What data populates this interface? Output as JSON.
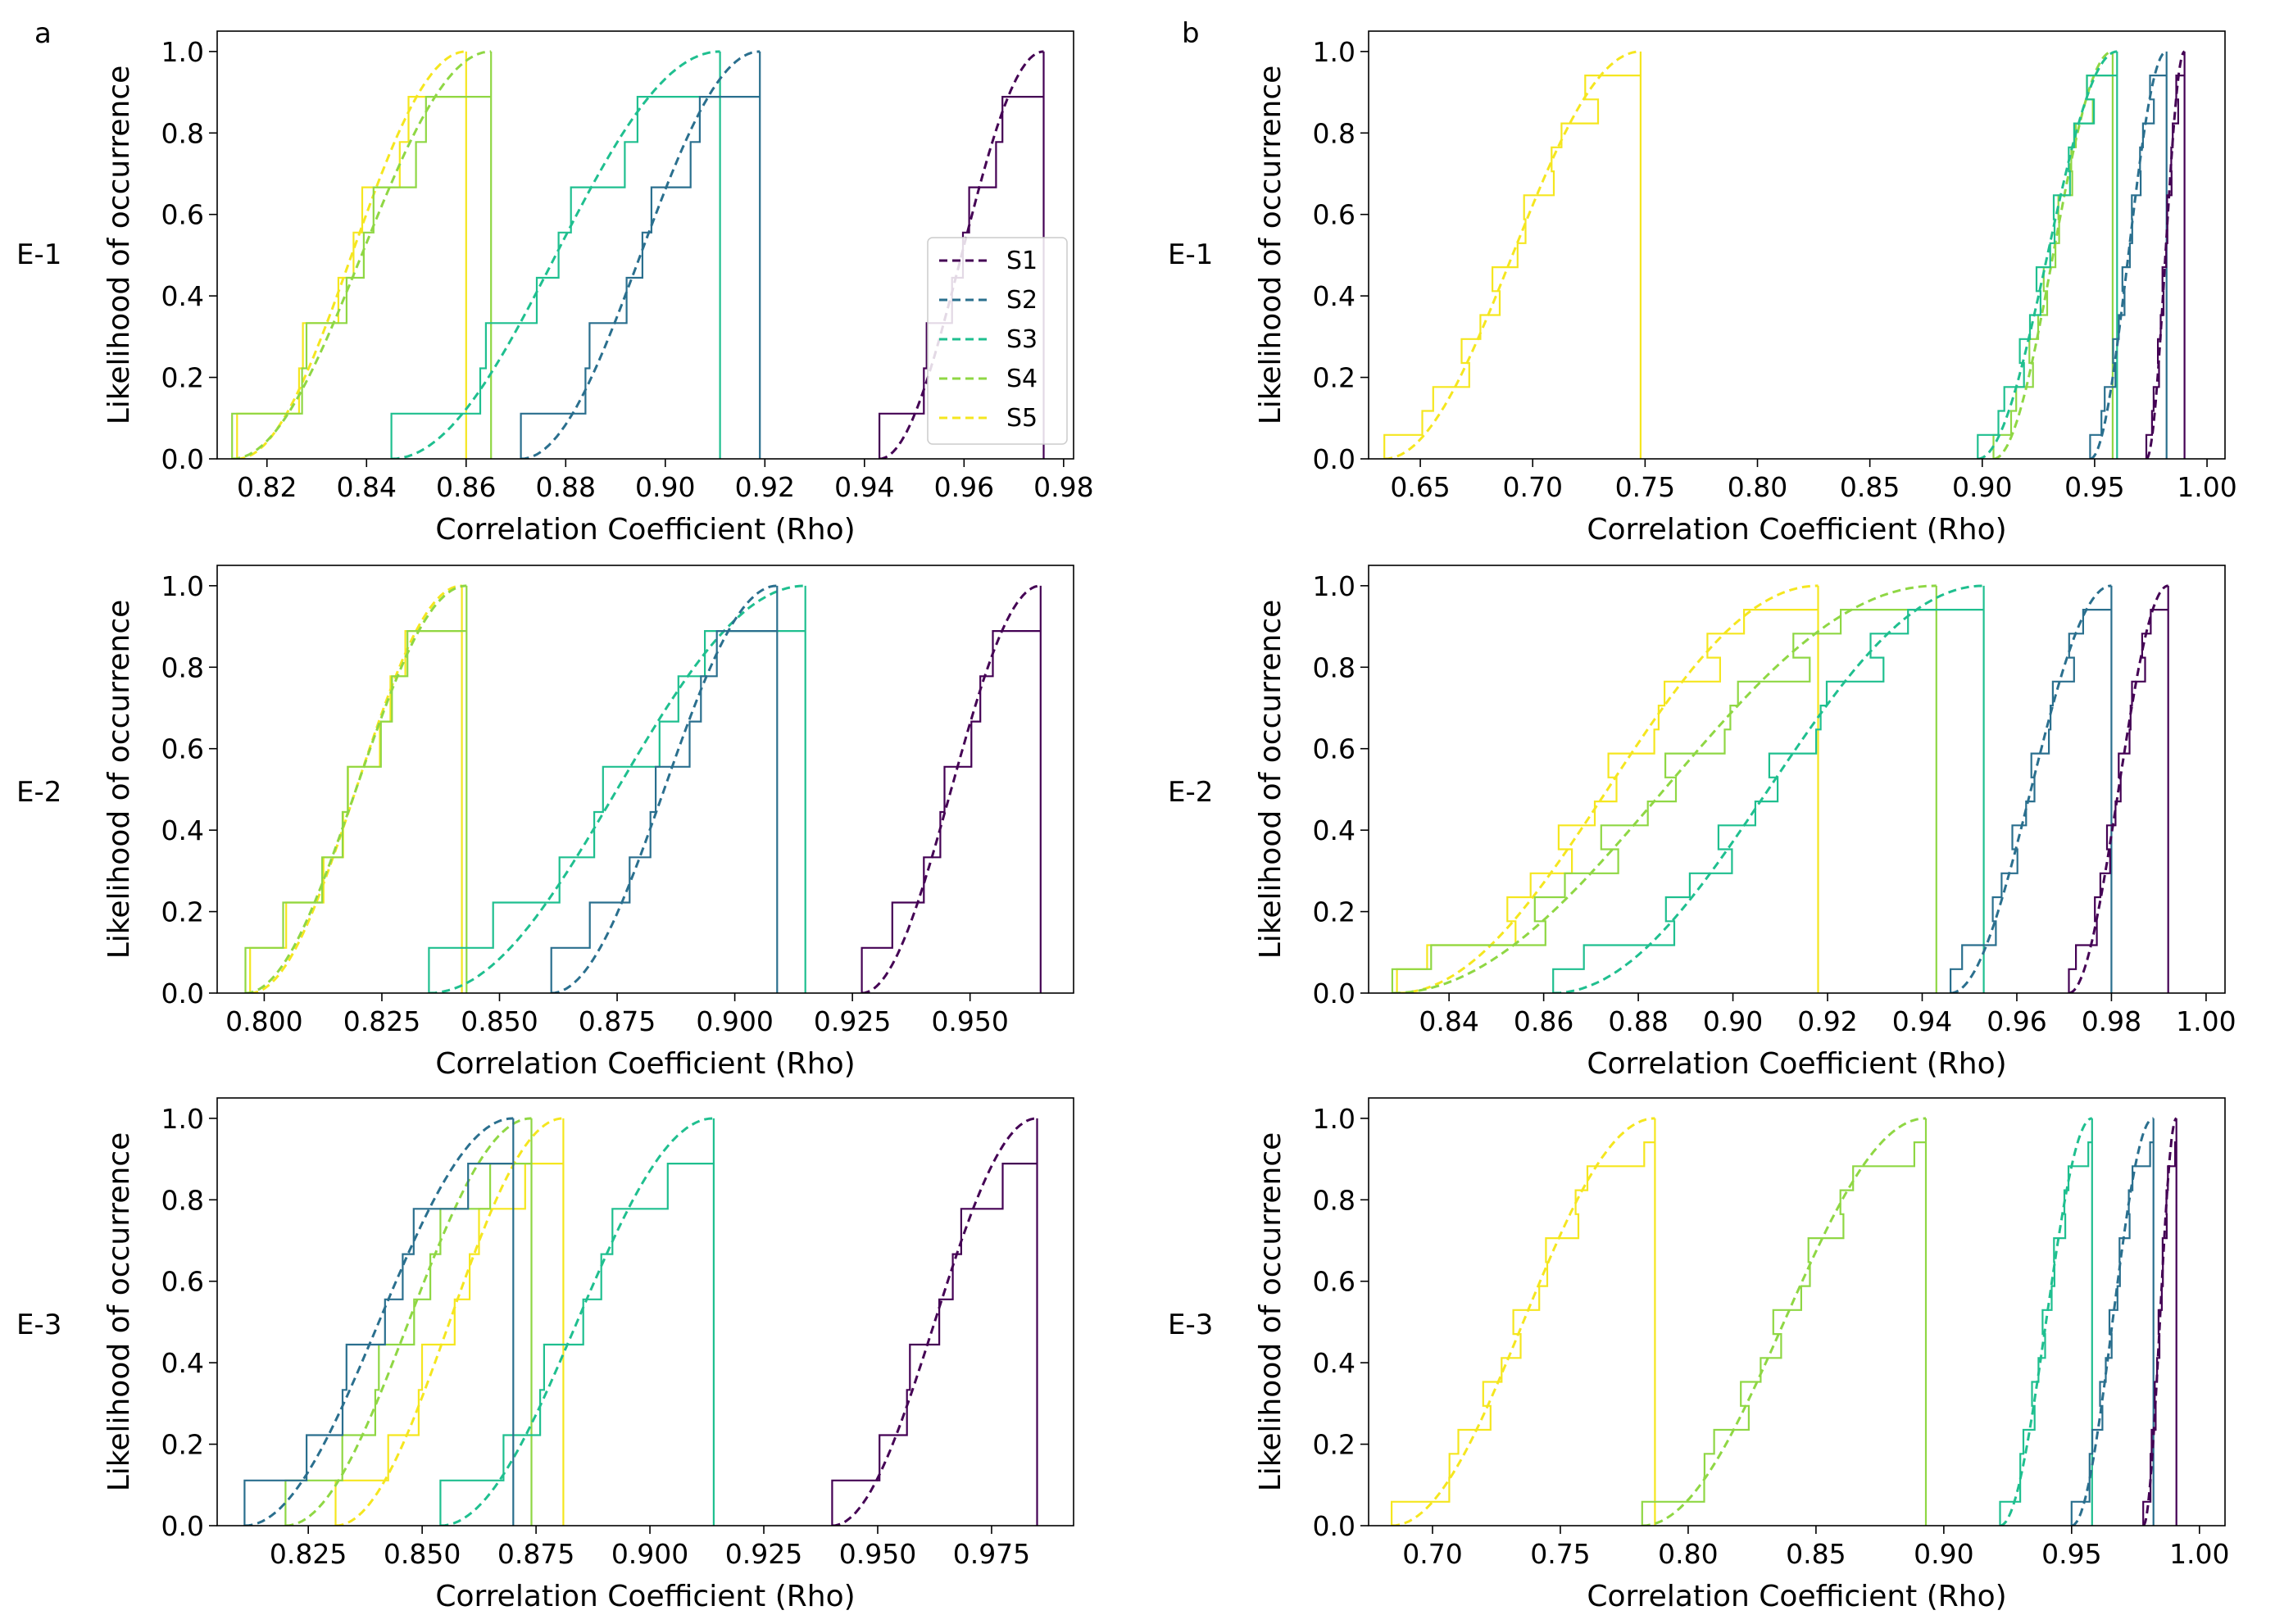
{
  "figure": {
    "panel_labels": [
      "a",
      "b"
    ],
    "row_labels": [
      "E-1",
      "E-2",
      "E-3"
    ],
    "colors": {
      "S1": "#440154",
      "S2": "#2a6f8e",
      "S3": "#1fbf8f",
      "S4": "#8fd744",
      "S5": "#f5e61f"
    }
  },
  "chart_data": [
    {
      "type": "line",
      "panel": "a",
      "row": "E-1",
      "xlabel": "Correlation Coefficient (Rho)",
      "ylabel": "Likelihood of occurrence",
      "xlim": [
        0.81,
        0.982
      ],
      "ylim": [
        0,
        1.05
      ],
      "xticks": [
        "0.82",
        "0.84",
        "0.86",
        "0.88",
        "0.90",
        "0.92",
        "0.94",
        "0.96",
        "0.98"
      ],
      "yticks": [
        "0.0",
        "0.2",
        "0.4",
        "0.6",
        "0.8",
        "1.0"
      ],
      "legend": {
        "position": "right",
        "entries": [
          "S1",
          "S2",
          "S3",
          "S4",
          "S5"
        ]
      },
      "series": [
        {
          "name": "S1",
          "min": 0.943,
          "max": 0.976,
          "n": 9
        },
        {
          "name": "S2",
          "min": 0.871,
          "max": 0.919,
          "n": 9
        },
        {
          "name": "S3",
          "min": 0.845,
          "max": 0.911,
          "n": 9
        },
        {
          "name": "S4",
          "min": 0.813,
          "max": 0.865,
          "n": 9
        },
        {
          "name": "S5",
          "min": 0.814,
          "max": 0.86,
          "n": 9
        }
      ]
    },
    {
      "type": "line",
      "panel": "b",
      "row": "E-1",
      "xlabel": "Correlation Coefficient (Rho)",
      "ylabel": "Likelihood of occurrence",
      "xlim": [
        0.627,
        1.008
      ],
      "ylim": [
        0,
        1.05
      ],
      "xticks": [
        "0.65",
        "0.70",
        "0.75",
        "0.80",
        "0.85",
        "0.90",
        "0.95",
        "1.00"
      ],
      "yticks": [
        "0.0",
        "0.2",
        "0.4",
        "0.6",
        "0.8",
        "1.0"
      ],
      "series": [
        {
          "name": "S1",
          "min": 0.973,
          "max": 0.99,
          "n": 17
        },
        {
          "name": "S2",
          "min": 0.948,
          "max": 0.982,
          "n": 17
        },
        {
          "name": "S3",
          "min": 0.898,
          "max": 0.96,
          "n": 17
        },
        {
          "name": "S4",
          "min": 0.905,
          "max": 0.958,
          "n": 17
        },
        {
          "name": "S5",
          "min": 0.634,
          "max": 0.748,
          "n": 17
        }
      ]
    },
    {
      "type": "line",
      "panel": "a",
      "row": "E-2",
      "xlabel": "Correlation Coefficient (Rho)",
      "ylabel": "Likelihood of occurrence",
      "xlim": [
        0.79,
        0.972
      ],
      "ylim": [
        0,
        1.05
      ],
      "xticks": [
        "0.800",
        "0.825",
        "0.850",
        "0.875",
        "0.900",
        "0.925",
        "0.950"
      ],
      "yticks": [
        "0.0",
        "0.2",
        "0.4",
        "0.6",
        "0.8",
        "1.0"
      ],
      "series": [
        {
          "name": "S1",
          "min": 0.927,
          "max": 0.965,
          "n": 9
        },
        {
          "name": "S2",
          "min": 0.861,
          "max": 0.909,
          "n": 9
        },
        {
          "name": "S3",
          "min": 0.835,
          "max": 0.915,
          "n": 9
        },
        {
          "name": "S4",
          "min": 0.796,
          "max": 0.843,
          "n": 9
        },
        {
          "name": "S5",
          "min": 0.797,
          "max": 0.842,
          "n": 9
        }
      ]
    },
    {
      "type": "line",
      "panel": "b",
      "row": "E-2",
      "xlabel": "Correlation Coefficient (Rho)",
      "ylabel": "Likelihood of occurrence",
      "xlim": [
        0.823,
        1.004
      ],
      "ylim": [
        0,
        1.05
      ],
      "xticks": [
        "0.84",
        "0.86",
        "0.88",
        "0.90",
        "0.92",
        "0.94",
        "0.96",
        "0.98",
        "1.00"
      ],
      "yticks": [
        "0.0",
        "0.2",
        "0.4",
        "0.6",
        "0.8",
        "1.0"
      ],
      "series": [
        {
          "name": "S1",
          "min": 0.971,
          "max": 0.992,
          "n": 17
        },
        {
          "name": "S2",
          "min": 0.946,
          "max": 0.98,
          "n": 17
        },
        {
          "name": "S3",
          "min": 0.862,
          "max": 0.953,
          "n": 17
        },
        {
          "name": "S4",
          "min": 0.828,
          "max": 0.943,
          "n": 17
        },
        {
          "name": "S5",
          "min": 0.829,
          "max": 0.918,
          "n": 17
        }
      ]
    },
    {
      "type": "line",
      "panel": "a",
      "row": "E-3",
      "xlabel": "Correlation Coefficient (Rho)",
      "ylabel": "Likelihood of occurrence",
      "xlim": [
        0.805,
        0.993
      ],
      "ylim": [
        0,
        1.05
      ],
      "xticks": [
        "0.825",
        "0.850",
        "0.875",
        "0.900",
        "0.925",
        "0.950",
        "0.975"
      ],
      "yticks": [
        "0.0",
        "0.2",
        "0.4",
        "0.6",
        "0.8",
        "1.0"
      ],
      "series": [
        {
          "name": "S1",
          "min": 0.94,
          "max": 0.985,
          "n": 9
        },
        {
          "name": "S2",
          "min": 0.811,
          "max": 0.87,
          "n": 9
        },
        {
          "name": "S3",
          "min": 0.854,
          "max": 0.914,
          "n": 9
        },
        {
          "name": "S4",
          "min": 0.82,
          "max": 0.874,
          "n": 9
        },
        {
          "name": "S5",
          "min": 0.831,
          "max": 0.881,
          "n": 9
        }
      ]
    },
    {
      "type": "line",
      "panel": "b",
      "row": "E-3",
      "xlabel": "Correlation Coefficient (Rho)",
      "ylabel": "Likelihood of occurrence",
      "xlim": [
        0.675,
        1.01
      ],
      "ylim": [
        0,
        1.05
      ],
      "xticks": [
        "0.70",
        "0.75",
        "0.80",
        "0.85",
        "0.90",
        "0.95",
        "1.00"
      ],
      "yticks": [
        "0.0",
        "0.2",
        "0.4",
        "0.6",
        "0.8",
        "1.0"
      ],
      "series": [
        {
          "name": "S1",
          "min": 0.978,
          "max": 0.991,
          "n": 17
        },
        {
          "name": "S2",
          "min": 0.95,
          "max": 0.982,
          "n": 17
        },
        {
          "name": "S3",
          "min": 0.922,
          "max": 0.958,
          "n": 17
        },
        {
          "name": "S4",
          "min": 0.782,
          "max": 0.893,
          "n": 17
        },
        {
          "name": "S5",
          "min": 0.684,
          "max": 0.787,
          "n": 17
        }
      ]
    }
  ]
}
